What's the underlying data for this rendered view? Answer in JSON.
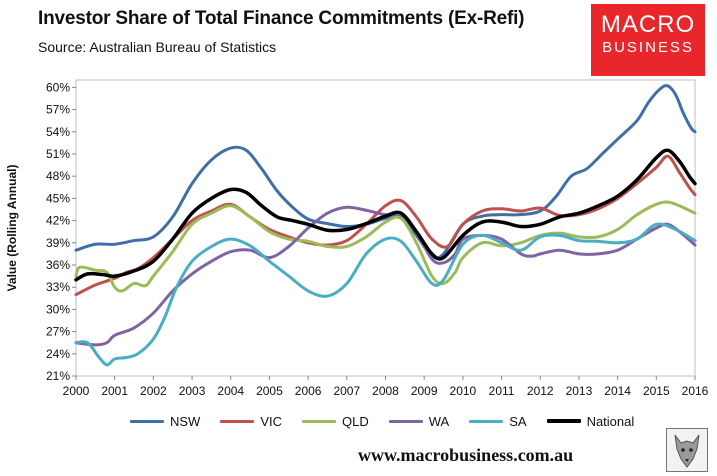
{
  "header": {
    "title": "Investor Share of Total Finance Commitments (Ex-Refi)",
    "subtitle": "Source: Australian Bureau of Statistics",
    "logo_line1": "MACRO",
    "logo_line2": "BUSINESS",
    "logo_color": "#e8262b"
  },
  "footer": {
    "website": "www.macrobusiness.com.au"
  },
  "chart_data": {
    "type": "line",
    "title": "Investor Share of Total Finance Commitments (Ex-Refi)",
    "xlabel": "",
    "ylabel": "Value (Rolling Annual)",
    "xlim": [
      2000,
      2016
    ],
    "ylim": [
      21,
      61
    ],
    "x_ticks": [
      "2000",
      "2001",
      "2002",
      "2003",
      "2004",
      "2005",
      "2006",
      "2007",
      "2008",
      "2009",
      "2010",
      "2011",
      "2012",
      "2013",
      "2014",
      "2015",
      "2016"
    ],
    "y_ticks": [
      "21%",
      "24%",
      "27%",
      "30%",
      "33%",
      "36%",
      "39%",
      "42%",
      "45%",
      "48%",
      "51%",
      "54%",
      "57%",
      "60%"
    ],
    "y_tick_values": [
      21,
      24,
      27,
      30,
      33,
      36,
      39,
      42,
      45,
      48,
      51,
      54,
      57,
      60
    ],
    "grid": false,
    "legend_position": "bottom",
    "series": [
      {
        "name": "NSW",
        "color": "#3f6fa8",
        "width": 3,
        "points": [
          [
            2000,
            38.0
          ],
          [
            2000.5,
            38.8
          ],
          [
            2001,
            38.8
          ],
          [
            2001.5,
            39.3
          ],
          [
            2002,
            39.8
          ],
          [
            2002.5,
            42.5
          ],
          [
            2003,
            47.0
          ],
          [
            2003.5,
            50.2
          ],
          [
            2004,
            51.8
          ],
          [
            2004.4,
            51.5
          ],
          [
            2004.8,
            49.0
          ],
          [
            2005.2,
            46.0
          ],
          [
            2005.6,
            43.8
          ],
          [
            2006,
            42.2
          ],
          [
            2006.5,
            41.6
          ],
          [
            2007,
            41.2
          ],
          [
            2007.5,
            41.5
          ],
          [
            2008,
            42.3
          ],
          [
            2008.4,
            42.5
          ],
          [
            2008.8,
            40.0
          ],
          [
            2009.2,
            37.2
          ],
          [
            2009.5,
            37.5
          ],
          [
            2010,
            41.5
          ],
          [
            2010.5,
            42.6
          ],
          [
            2011,
            42.8
          ],
          [
            2011.5,
            42.8
          ],
          [
            2012,
            43.3
          ],
          [
            2012.4,
            45.2
          ],
          [
            2012.8,
            48.0
          ],
          [
            2013.2,
            49.0
          ],
          [
            2013.6,
            51.0
          ],
          [
            2014,
            53.0
          ],
          [
            2014.5,
            55.5
          ],
          [
            2014.8,
            58.0
          ],
          [
            2015.1,
            59.8
          ],
          [
            2015.3,
            60.2
          ],
          [
            2015.5,
            59.0
          ],
          [
            2015.7,
            56.5
          ],
          [
            2015.9,
            54.5
          ],
          [
            2016,
            54.0
          ]
        ]
      },
      {
        "name": "VIC",
        "color": "#c0504d",
        "width": 3,
        "points": [
          [
            2000,
            32.0
          ],
          [
            2000.5,
            33.3
          ],
          [
            2001,
            34.2
          ],
          [
            2001.3,
            35.0
          ],
          [
            2001.6,
            35.5
          ],
          [
            2002,
            37.0
          ],
          [
            2002.5,
            39.5
          ],
          [
            2003,
            42.0
          ],
          [
            2003.5,
            43.3
          ],
          [
            2004,
            44.2
          ],
          [
            2004.5,
            42.5
          ],
          [
            2005,
            40.8
          ],
          [
            2005.5,
            39.8
          ],
          [
            2006,
            39.0
          ],
          [
            2006.5,
            38.7
          ],
          [
            2007,
            39.3
          ],
          [
            2007.5,
            41.5
          ],
          [
            2008,
            44.0
          ],
          [
            2008.4,
            44.7
          ],
          [
            2008.8,
            42.5
          ],
          [
            2009.2,
            39.5
          ],
          [
            2009.6,
            38.5
          ],
          [
            2010,
            41.5
          ],
          [
            2010.5,
            43.3
          ],
          [
            2011,
            43.6
          ],
          [
            2011.5,
            43.3
          ],
          [
            2012,
            43.7
          ],
          [
            2012.5,
            42.7
          ],
          [
            2013,
            42.8
          ],
          [
            2013.5,
            43.6
          ],
          [
            2014,
            45.0
          ],
          [
            2014.5,
            47.0
          ],
          [
            2015,
            49.2
          ],
          [
            2015.3,
            50.7
          ],
          [
            2015.6,
            48.5
          ],
          [
            2015.85,
            46.5
          ],
          [
            2016,
            45.5
          ]
        ]
      },
      {
        "name": "QLD",
        "color": "#9bbb59",
        "width": 3,
        "points": [
          [
            2000,
            34.5
          ],
          [
            2000.1,
            35.7
          ],
          [
            2000.5,
            35.3
          ],
          [
            2000.8,
            35.0
          ],
          [
            2001,
            33.0
          ],
          [
            2001.2,
            32.5
          ],
          [
            2001.5,
            33.5
          ],
          [
            2001.8,
            33.2
          ],
          [
            2002,
            34.5
          ],
          [
            2002.5,
            37.8
          ],
          [
            2003,
            41.5
          ],
          [
            2003.5,
            43.0
          ],
          [
            2004,
            44.0
          ],
          [
            2004.5,
            42.5
          ],
          [
            2005,
            40.5
          ],
          [
            2005.5,
            39.5
          ],
          [
            2006,
            39.2
          ],
          [
            2006.5,
            38.5
          ],
          [
            2007,
            38.5
          ],
          [
            2007.5,
            39.8
          ],
          [
            2008,
            41.8
          ],
          [
            2008.4,
            42.3
          ],
          [
            2008.8,
            39.0
          ],
          [
            2009.2,
            34.5
          ],
          [
            2009.5,
            33.5
          ],
          [
            2009.8,
            35.0
          ],
          [
            2010,
            37.0
          ],
          [
            2010.5,
            39.0
          ],
          [
            2011,
            38.6
          ],
          [
            2011.5,
            39.0
          ],
          [
            2012,
            40.0
          ],
          [
            2012.5,
            40.3
          ],
          [
            2013,
            39.8
          ],
          [
            2013.5,
            39.8
          ],
          [
            2014,
            40.8
          ],
          [
            2014.5,
            42.8
          ],
          [
            2015,
            44.2
          ],
          [
            2015.3,
            44.5
          ],
          [
            2015.6,
            44.0
          ],
          [
            2016,
            43.0
          ]
        ]
      },
      {
        "name": "WA",
        "color": "#8064a2",
        "width": 3,
        "points": [
          [
            2000,
            25.5
          ],
          [
            2000.5,
            25.2
          ],
          [
            2000.8,
            25.5
          ],
          [
            2001,
            26.5
          ],
          [
            2001.5,
            27.5
          ],
          [
            2002,
            29.5
          ],
          [
            2002.5,
            32.5
          ],
          [
            2003,
            34.8
          ],
          [
            2003.5,
            36.5
          ],
          [
            2004,
            37.8
          ],
          [
            2004.5,
            38.0
          ],
          [
            2005,
            37.0
          ],
          [
            2005.5,
            38.5
          ],
          [
            2006,
            41.0
          ],
          [
            2006.5,
            43.0
          ],
          [
            2007,
            43.8
          ],
          [
            2007.5,
            43.4
          ],
          [
            2008,
            42.8
          ],
          [
            2008.4,
            43.0
          ],
          [
            2008.8,
            40.5
          ],
          [
            2009.2,
            36.8
          ],
          [
            2009.5,
            36.3
          ],
          [
            2009.8,
            37.5
          ],
          [
            2010,
            39.5
          ],
          [
            2010.5,
            40.0
          ],
          [
            2011,
            39.5
          ],
          [
            2011.5,
            37.5
          ],
          [
            2011.8,
            37.2
          ],
          [
            2012,
            37.5
          ],
          [
            2012.5,
            38.0
          ],
          [
            2013,
            37.5
          ],
          [
            2013.5,
            37.5
          ],
          [
            2014,
            38.0
          ],
          [
            2014.5,
            39.5
          ],
          [
            2015,
            41.0
          ],
          [
            2015.3,
            41.5
          ],
          [
            2015.6,
            40.5
          ],
          [
            2016,
            38.7
          ]
        ]
      },
      {
        "name": "SA",
        "color": "#4bacc6",
        "width": 3,
        "points": [
          [
            2000,
            25.5
          ],
          [
            2000.3,
            25.5
          ],
          [
            2000.6,
            23.5
          ],
          [
            2000.8,
            22.5
          ],
          [
            2001,
            23.3
          ],
          [
            2001.3,
            23.5
          ],
          [
            2001.6,
            24.0
          ],
          [
            2002,
            26.0
          ],
          [
            2002.3,
            29.0
          ],
          [
            2002.6,
            33.0
          ],
          [
            2003,
            36.5
          ],
          [
            2003.5,
            38.5
          ],
          [
            2004,
            39.5
          ],
          [
            2004.5,
            38.6
          ],
          [
            2005,
            36.5
          ],
          [
            2005.5,
            34.5
          ],
          [
            2006,
            32.5
          ],
          [
            2006.5,
            31.8
          ],
          [
            2007,
            33.5
          ],
          [
            2007.5,
            37.5
          ],
          [
            2008,
            39.5
          ],
          [
            2008.4,
            39.2
          ],
          [
            2008.8,
            36.5
          ],
          [
            2009.2,
            33.5
          ],
          [
            2009.5,
            34.0
          ],
          [
            2010,
            38.8
          ],
          [
            2010.5,
            40.0
          ],
          [
            2011,
            39.0
          ],
          [
            2011.5,
            38.0
          ],
          [
            2012,
            39.8
          ],
          [
            2012.5,
            40.0
          ],
          [
            2013,
            39.3
          ],
          [
            2013.5,
            39.2
          ],
          [
            2014,
            39.0
          ],
          [
            2014.5,
            39.5
          ],
          [
            2015,
            41.5
          ],
          [
            2015.5,
            40.8
          ],
          [
            2016,
            39.3
          ]
        ]
      },
      {
        "name": "National",
        "color": "#000000",
        "width": 3.5,
        "points": [
          [
            2000,
            34.0
          ],
          [
            2000.3,
            34.8
          ],
          [
            2000.7,
            34.7
          ],
          [
            2001,
            34.5
          ],
          [
            2001.5,
            35.2
          ],
          [
            2002,
            36.5
          ],
          [
            2002.5,
            39.5
          ],
          [
            2003,
            43.0
          ],
          [
            2003.5,
            45.0
          ],
          [
            2004,
            46.2
          ],
          [
            2004.4,
            45.8
          ],
          [
            2004.8,
            44.0
          ],
          [
            2005.2,
            42.5
          ],
          [
            2005.6,
            42.0
          ],
          [
            2006,
            41.5
          ],
          [
            2006.5,
            40.7
          ],
          [
            2007,
            40.8
          ],
          [
            2007.5,
            41.6
          ],
          [
            2008,
            42.6
          ],
          [
            2008.4,
            43.0
          ],
          [
            2008.8,
            40.5
          ],
          [
            2009.2,
            37.5
          ],
          [
            2009.5,
            37.0
          ],
          [
            2010,
            40.0
          ],
          [
            2010.5,
            41.8
          ],
          [
            2011,
            41.8
          ],
          [
            2011.5,
            41.2
          ],
          [
            2012,
            41.5
          ],
          [
            2012.5,
            42.5
          ],
          [
            2013,
            43.0
          ],
          [
            2013.5,
            44.0
          ],
          [
            2014,
            45.3
          ],
          [
            2014.5,
            47.5
          ],
          [
            2015,
            50.5
          ],
          [
            2015.3,
            51.5
          ],
          [
            2015.6,
            50.0
          ],
          [
            2015.85,
            48.0
          ],
          [
            2016,
            47.0
          ]
        ]
      }
    ]
  }
}
